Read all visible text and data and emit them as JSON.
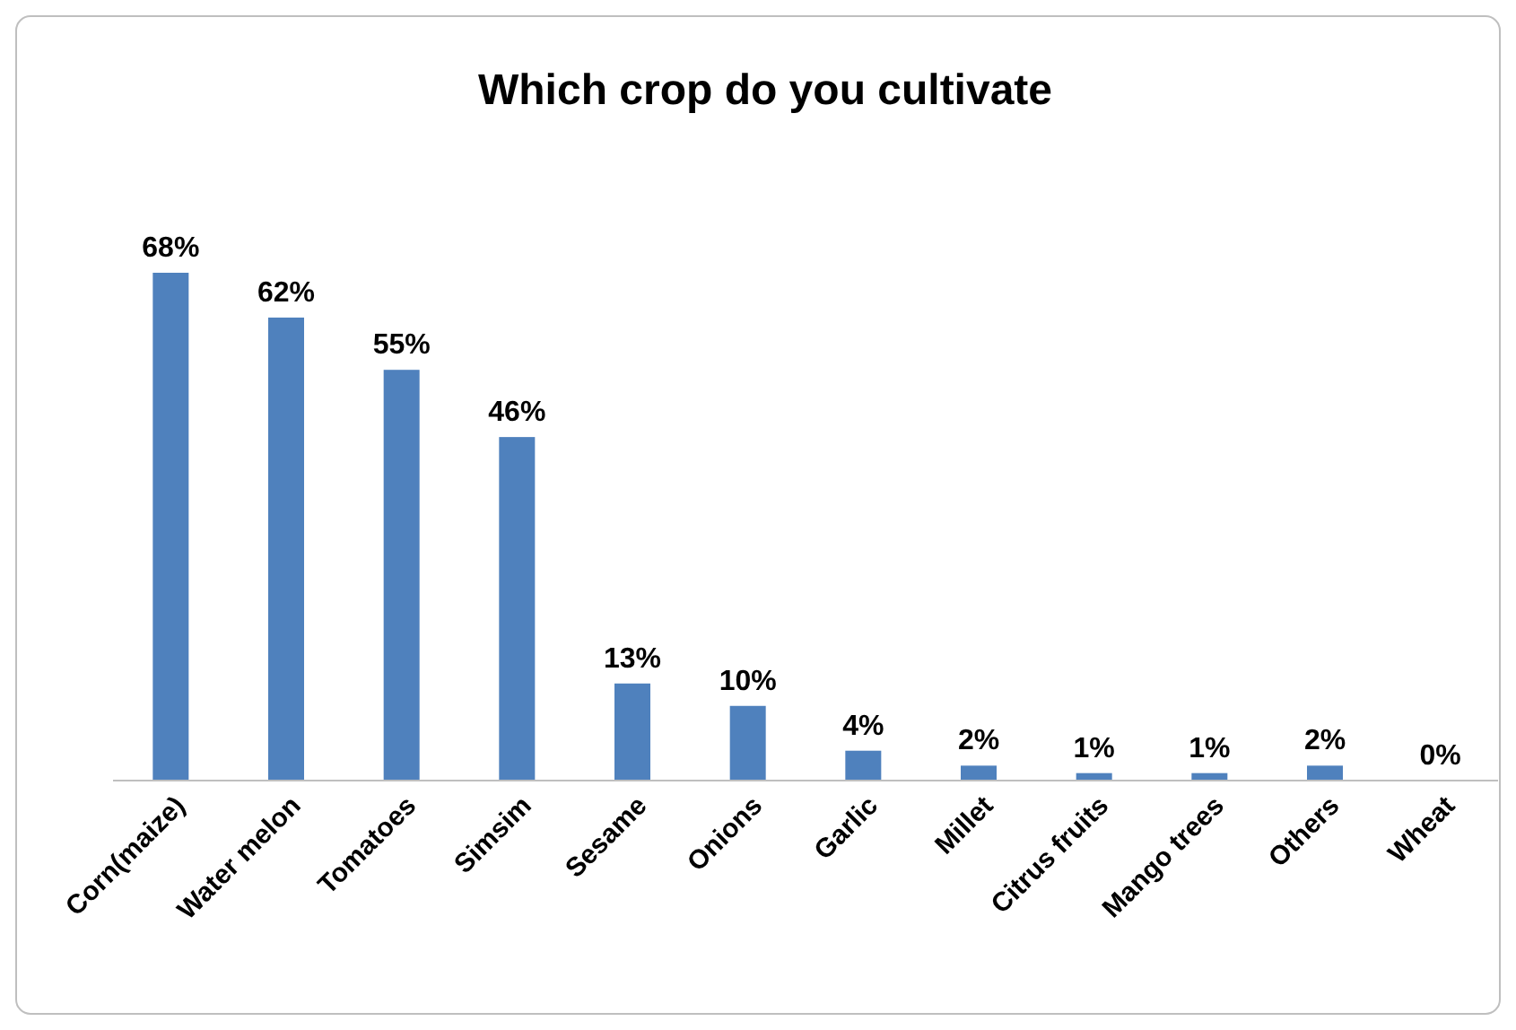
{
  "chart_data": {
    "type": "bar",
    "title": "Which crop do you cultivate",
    "categories": [
      "Corn(maize)",
      "Water melon",
      "Tomatoes",
      "Simsim",
      "Sesame",
      "Onions",
      "Garlic",
      "Millet",
      "Citrus fruits",
      "Mango trees",
      "Others",
      "Wheat"
    ],
    "values": [
      68,
      62,
      55,
      46,
      13,
      10,
      4,
      2,
      1,
      1,
      2,
      0
    ],
    "value_labels": [
      "68%",
      "62%",
      "55%",
      "46%",
      "13%",
      "10%",
      "4%",
      "2%",
      "1%",
      "1%",
      "2%",
      "0%"
    ],
    "color": "#4f81bd"
  }
}
